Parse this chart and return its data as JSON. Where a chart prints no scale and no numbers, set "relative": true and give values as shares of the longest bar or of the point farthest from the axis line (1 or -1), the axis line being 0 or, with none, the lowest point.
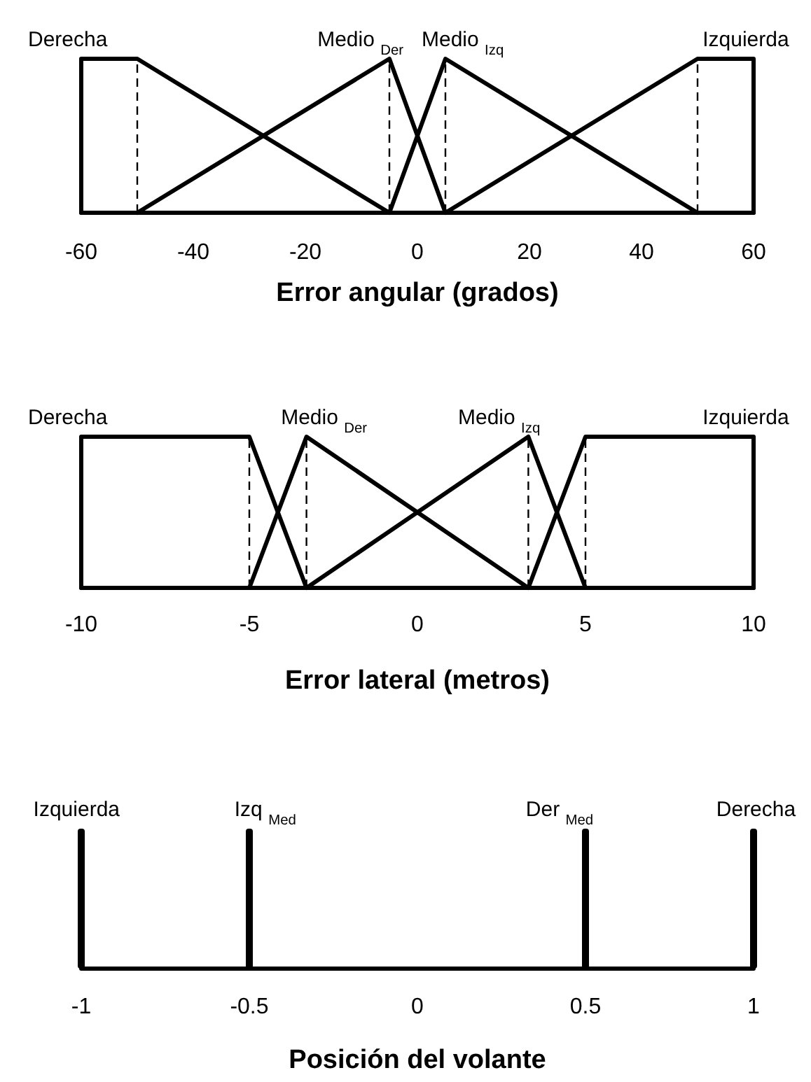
{
  "chart_data": [
    {
      "type": "line",
      "relative": true,
      "xlabel": "Error angular (grados)",
      "xlim": [
        -60,
        60
      ],
      "xticks": [
        -60,
        -40,
        -20,
        0,
        20,
        40,
        60
      ],
      "grid": false,
      "marker": "none",
      "line_style": "solid",
      "series": [
        {
          "name": "Derecha",
          "color": "#000000",
          "x": [
            -60,
            -60,
            -50,
            -5
          ],
          "values": [
            0,
            1,
            1,
            0
          ]
        },
        {
          "name": "Medio $_{Der}$",
          "color": "#000000",
          "x": [
            -50,
            -5,
            5
          ],
          "values": [
            0,
            1,
            0
          ]
        },
        {
          "name": "Medio $_{Izq}$",
          "color": "#000000",
          "x": [
            -5,
            5,
            50
          ],
          "values": [
            0,
            1,
            0
          ]
        },
        {
          "name": "Izquierda",
          "color": "#000000",
          "x": [
            5,
            50,
            60,
            60
          ],
          "values": [
            0,
            1,
            1,
            0
          ]
        }
      ],
      "ref_lines": [
        {
          "axis": "x",
          "value": -50,
          "color": "#000000",
          "line_style": "dashed"
        },
        {
          "axis": "x",
          "value": -5,
          "color": "#000000",
          "line_style": "dashed"
        },
        {
          "axis": "x",
          "value": 5,
          "color": "#000000",
          "line_style": "dashed"
        },
        {
          "axis": "x",
          "value": 50,
          "color": "#000000",
          "line_style": "dashed"
        }
      ]
    },
    {
      "type": "line",
      "relative": true,
      "xlabel": "Error lateral (metros)",
      "xlim": [
        -10,
        10
      ],
      "xticks": [
        -10,
        -5,
        0,
        5,
        10
      ],
      "grid": false,
      "marker": "none",
      "line_style": "solid",
      "series": [
        {
          "name": "Derecha",
          "color": "#000000",
          "x": [
            -10,
            -10,
            -5,
            -3.3
          ],
          "values": [
            0,
            1,
            1,
            0
          ]
        },
        {
          "name": "Medio $_{Der}$",
          "color": "#000000",
          "x": [
            -5,
            -3.3,
            3.3
          ],
          "values": [
            0,
            1,
            0
          ]
        },
        {
          "name": "Medio $_{Izq}$",
          "color": "#000000",
          "x": [
            -3.3,
            3.3,
            5
          ],
          "values": [
            0,
            1,
            0
          ]
        },
        {
          "name": "Izquierda",
          "color": "#000000",
          "x": [
            3.3,
            5,
            10,
            10
          ],
          "values": [
            0,
            1,
            1,
            0
          ]
        }
      ],
      "ref_lines": [
        {
          "axis": "x",
          "value": -5,
          "color": "#000000",
          "line_style": "dashed"
        },
        {
          "axis": "x",
          "value": -3.3,
          "color": "#000000",
          "line_style": "dashed"
        },
        {
          "axis": "x",
          "value": 3.3,
          "color": "#000000",
          "line_style": "dashed"
        },
        {
          "axis": "x",
          "value": 5,
          "color": "#000000",
          "line_style": "dashed"
        }
      ]
    },
    {
      "type": "bar",
      "relative": true,
      "xlabel": "Posición del volante",
      "xlim": [
        -1,
        1
      ],
      "xticks": [
        -1,
        -0.5,
        0,
        0.5,
        1
      ],
      "grid": false,
      "series": [
        {
          "name": "Izquierda",
          "color": "#000000",
          "x": [
            -1
          ],
          "values": [
            1
          ]
        },
        {
          "name": "Izq $_{Med}$",
          "color": "#000000",
          "x": [
            -0.5
          ],
          "values": [
            1
          ]
        },
        {
          "name": "Der $_{Med}$",
          "color": "#000000",
          "x": [
            0.5
          ],
          "values": [
            1
          ]
        },
        {
          "name": "Derecha",
          "color": "#000000",
          "x": [
            1
          ],
          "values": [
            1
          ]
        }
      ]
    }
  ]
}
